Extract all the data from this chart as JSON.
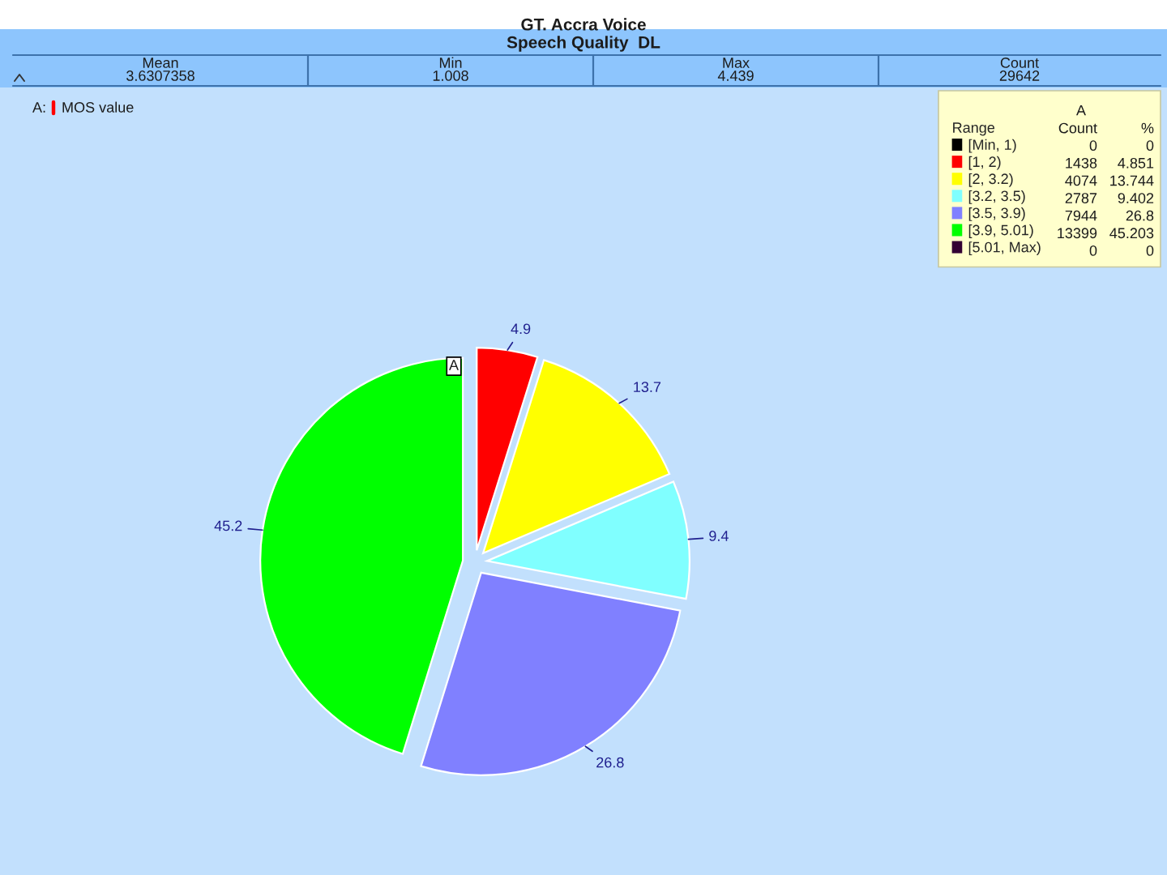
{
  "chart_data": {
    "type": "pie",
    "title": "GT. Accra Voice",
    "subtitle": "Speech Quality  DL",
    "categories": [
      "[Min, 1)",
      "[1, 2)",
      "[2, 3.2)",
      "[3.2, 3.5)",
      "[3.5, 3.9)",
      "[3.9, 5.01)",
      "[5.01, Max)"
    ],
    "values": [
      0,
      4.851,
      13.744,
      9.402,
      26.8,
      45.203,
      0
    ],
    "value_labels": [
      null,
      "4.9",
      "13.7",
      "9.4",
      "26.8",
      "45.2",
      null
    ],
    "colors": [
      "#000000",
      "#ff0000",
      "#ffff00",
      "#80ffff",
      "#8080ff",
      "#00ff00",
      "#330033"
    ],
    "legend": "top right",
    "legend_title": "Range",
    "annotations": [
      "Mean",
      "3.6307358",
      "Min",
      "1.008",
      "Max",
      "4.439",
      "Count",
      "29642",
      "A:",
      "MOS value",
      "A",
      "A",
      "Count",
      "%",
      "0",
      "1438",
      "4074",
      "2787",
      "7944",
      "13399",
      "0",
      "0",
      "4.851",
      "13.744",
      "9.402",
      "26.8",
      "45.203",
      "0"
    ]
  }
}
